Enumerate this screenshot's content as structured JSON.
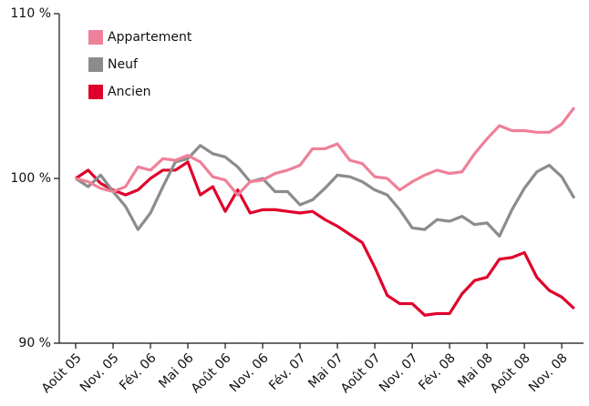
{
  "chart_data": {
    "type": "line",
    "categories": [
      "Août 05",
      null,
      null,
      "Nov. 05",
      null,
      null,
      "Fév. 06",
      null,
      null,
      "Mai 06",
      null,
      null,
      "Août 06",
      null,
      null,
      "Nov. 06",
      null,
      null,
      "Fév. 07",
      null,
      null,
      "Mai 07",
      null,
      null,
      "Août 07",
      null,
      null,
      "Nov. 07",
      null,
      null,
      "Fév. 08",
      null,
      null,
      "Mai 08",
      null,
      null,
      "Août 08",
      null,
      null,
      "Nov. 08",
      null
    ],
    "series": [
      {
        "name": "Appartement",
        "color": "#ef8099",
        "values": [
          100,
          99.8,
          99.4,
          99.2,
          99.5,
          100.7,
          100.5,
          101.2,
          101.1,
          101.4,
          101.0,
          100.1,
          99.9,
          99.0,
          99.8,
          99.9,
          100.3,
          100.5,
          100.8,
          101.8,
          101.8,
          102.1,
          101.1,
          100.9,
          100.1,
          100.0,
          99.3,
          99.8,
          100.2,
          100.5,
          100.3,
          100.4,
          101.5,
          102.4,
          103.2,
          102.9,
          102.9,
          102.8,
          102.8,
          103.3,
          104.3
        ]
      },
      {
        "name": "Neuf",
        "color": "#8c8c8c",
        "values": [
          100,
          99.5,
          100.2,
          99.2,
          98.3,
          96.9,
          97.9,
          99.5,
          101.0,
          101.2,
          102.0,
          101.5,
          101.3,
          100.7,
          99.8,
          100.0,
          99.2,
          99.2,
          98.4,
          98.7,
          99.4,
          100.2,
          100.1,
          99.8,
          99.3,
          99.0,
          98.1,
          97.0,
          96.9,
          97.5,
          97.4,
          97.7,
          97.2,
          97.3,
          96.5,
          98.1,
          99.4,
          100.4,
          100.8,
          100.1,
          98.8
        ]
      },
      {
        "name": "Ancien",
        "color": "#e0002b",
        "values": [
          100,
          100.5,
          99.7,
          99.3,
          99.0,
          99.3,
          100.0,
          100.5,
          100.5,
          101.0,
          99.0,
          99.5,
          98.0,
          99.3,
          97.9,
          98.1,
          98.1,
          98.0,
          97.9,
          98.0,
          97.5,
          97.1,
          96.6,
          96.1,
          94.6,
          92.9,
          92.4,
          92.4,
          91.7,
          91.8,
          91.8,
          93.0,
          93.8,
          94.0,
          95.1,
          95.2,
          95.5,
          94.0,
          93.2,
          92.8,
          92.1
        ]
      }
    ],
    "ylim": [
      90,
      110
    ],
    "yticks": [
      {
        "value": 90,
        "label": "90 %"
      },
      {
        "value": 100,
        "label": "100 %"
      },
      {
        "value": 110,
        "label": "110 %"
      }
    ],
    "legend": "upper left"
  }
}
